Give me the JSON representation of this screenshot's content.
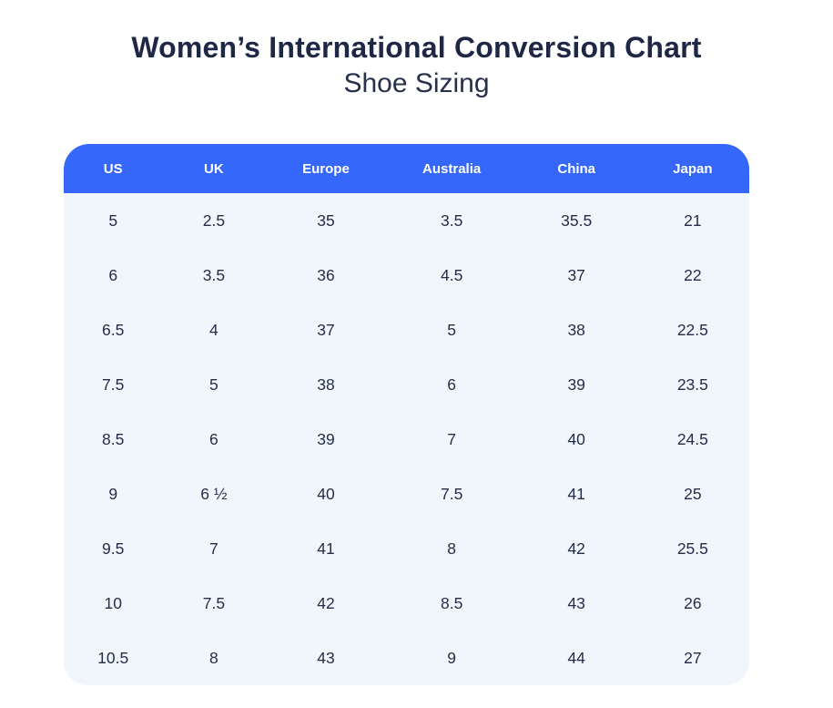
{
  "page": {
    "title": "Women’s International Conversion Chart",
    "subtitle": "Shoe Sizing"
  },
  "colors": {
    "header_bg": "#3567FA",
    "header_text": "#FFFFFF",
    "body_bg": "#F1F5FC",
    "title_text": "#1E2846",
    "subtitle_text": "#273149",
    "cell_text": "#252E49",
    "page_bg": "#FFFFFF"
  },
  "chart_data": {
    "type": "table",
    "title": "Women’s International Conversion Chart",
    "subtitle": "Shoe Sizing",
    "columns": [
      "US",
      "UK",
      "Europe",
      "Australia",
      "China",
      "Japan"
    ],
    "rows": [
      [
        "5",
        "2.5",
        "35",
        "3.5",
        "35.5",
        "21"
      ],
      [
        "6",
        "3.5",
        "36",
        "4.5",
        "37",
        "22"
      ],
      [
        "6.5",
        "4",
        "37",
        "5",
        "38",
        "22.5"
      ],
      [
        "7.5",
        "5",
        "38",
        "6",
        "39",
        "23.5"
      ],
      [
        "8.5",
        "6",
        "39",
        "7",
        "40",
        "24.5"
      ],
      [
        "9",
        "6 ½",
        "40",
        "7.5",
        "41",
        "25"
      ],
      [
        "9.5",
        "7",
        "41",
        "8",
        "42",
        "25.5"
      ],
      [
        "10",
        "7.5",
        "42",
        "8.5",
        "43",
        "26"
      ],
      [
        "10.5",
        "8",
        "43",
        "9",
        "44",
        "27"
      ]
    ],
    "layout": {
      "legend": "none",
      "grid": "off",
      "column_width_percents": [
        14.4,
        15.0,
        17.7,
        19.0,
        17.4,
        16.5
      ]
    }
  }
}
